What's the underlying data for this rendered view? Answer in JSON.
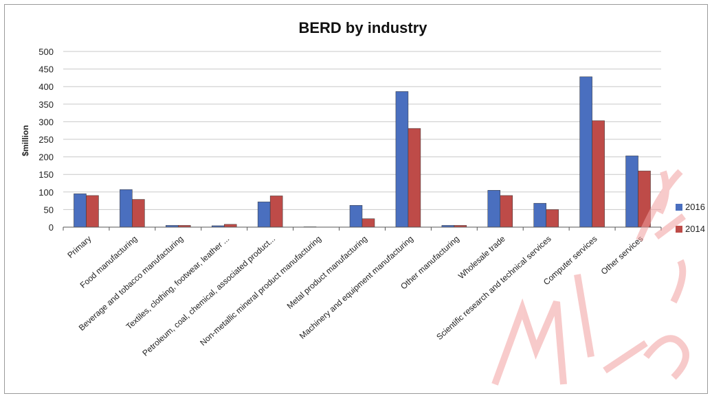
{
  "chart_data": {
    "type": "bar",
    "title": "BERD by industry",
    "ylabel": "$million",
    "xlabel": "",
    "ylim": [
      0,
      500
    ],
    "yticks": [
      0,
      50,
      100,
      150,
      200,
      250,
      300,
      350,
      400,
      450,
      500
    ],
    "grid": true,
    "legend_position": "right",
    "categories": [
      "Primary",
      "Food manufacturing",
      "Beverage and tobacco manufacturing",
      "Textiles, clothing, footwear, leather ...",
      "Petroleum, coal, chemical, associated product...",
      "Non-metallic mineral product manufacturing",
      "Metal product manufacturing",
      "Machinery and equipment manufacturing",
      "Other manufacturing",
      "Wholesale trade",
      "Scientific research and technical services",
      "Computer services",
      "Other services"
    ],
    "series": [
      {
        "name": "2016",
        "color": "#4a6fbf",
        "values": [
          95,
          107,
          5,
          4,
          72,
          1,
          62,
          386,
          5,
          105,
          68,
          428,
          203
        ]
      },
      {
        "name": "2014",
        "color": "#be4b48",
        "values": [
          90,
          79,
          5,
          8,
          89,
          0,
          24,
          281,
          5,
          90,
          50,
          303,
          160
        ]
      }
    ]
  }
}
